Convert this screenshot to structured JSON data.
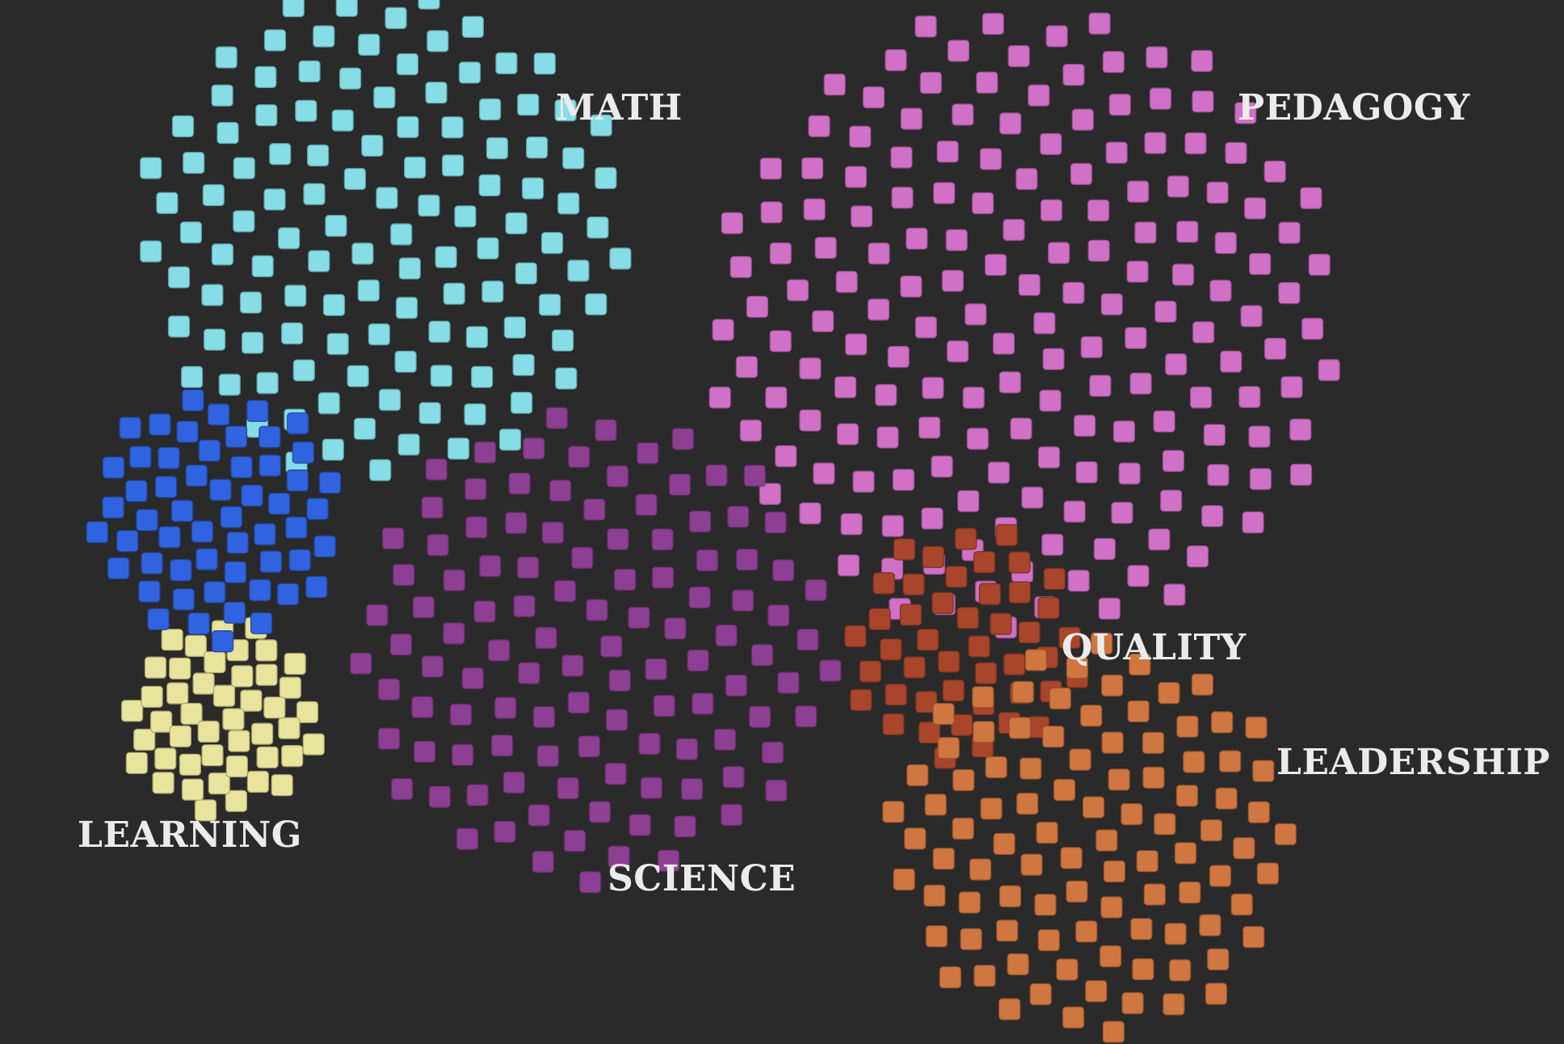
{
  "background": "#2a2a2a",
  "label_color": "#ebebeb",
  "clusters": [
    {
      "id": "math",
      "label": "MATH",
      "color": "#86dde6",
      "count": 118
    },
    {
      "id": "pedagogy",
      "label": "PEDAGOGY",
      "color": "#d070c6",
      "count": 176
    },
    {
      "id": "learning",
      "label": "LEARNING",
      "color": "#e9e49c",
      "count": 45
    },
    {
      "id": "science",
      "label": "SCIENCE",
      "color": "#8d3f93",
      "count": 112
    },
    {
      "id": "blue",
      "label": "",
      "color": "#2f63e0",
      "count": 55
    },
    {
      "id": "quality",
      "label": "QUALITY",
      "color": "#a8452b",
      "count": 45
    },
    {
      "id": "leadership",
      "label": "LEADERSHIP",
      "color": "#d07640",
      "count": 95
    }
  ]
}
